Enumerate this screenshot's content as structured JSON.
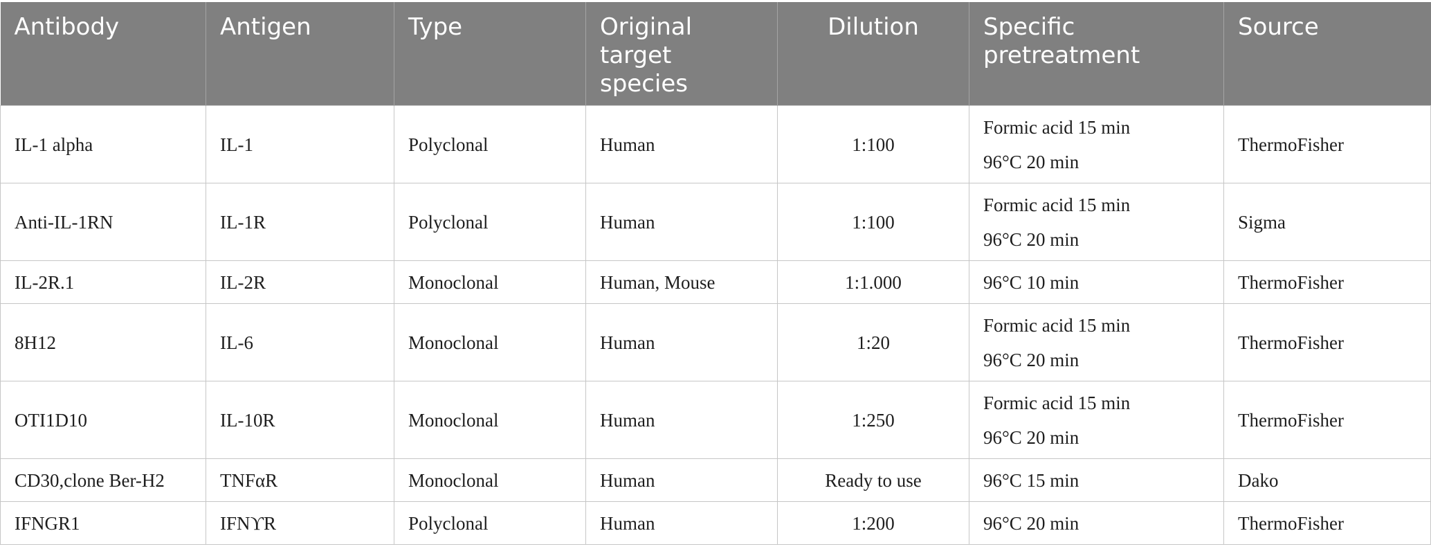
{
  "table": {
    "headers": [
      "Antibody",
      "Antigen",
      "Type",
      "Original target species",
      "Dilution",
      "Specific pretreatment",
      "Source"
    ],
    "rows": [
      {
        "antibody": "IL-1 alpha",
        "antigen": "IL-1",
        "type": "Polyclonal",
        "species": "Human",
        "dilution": "1:100",
        "pretreatment": [
          "Formic acid 15 min",
          "96°C 20 min"
        ],
        "source": "ThermoFisher"
      },
      {
        "antibody": "Anti-IL-1RN",
        "antigen": "IL-1R",
        "type": "Polyclonal",
        "species": "Human",
        "dilution": "1:100",
        "pretreatment": [
          "Formic acid 15 min",
          "96°C 20 min"
        ],
        "source": "Sigma"
      },
      {
        "antibody": "IL-2R.1",
        "antigen": "IL-2R",
        "type": "Monoclonal",
        "species": "Human, Mouse",
        "dilution": "1:1.000",
        "pretreatment": [
          "96°C 10 min"
        ],
        "source": "ThermoFisher"
      },
      {
        "antibody": "8H12",
        "antigen": "IL-6",
        "type": "Monoclonal",
        "species": "Human",
        "dilution": "1:20",
        "pretreatment": [
          "Formic acid 15 min",
          "96°C 20 min"
        ],
        "source": "ThermoFisher"
      },
      {
        "antibody": "OTI1D10",
        "antigen": "IL-10R",
        "type": "Monoclonal",
        "species": "Human",
        "dilution": "1:250",
        "pretreatment": [
          "Formic acid 15 min",
          "96°C 20 min"
        ],
        "source": "ThermoFisher"
      },
      {
        "antibody": "CD30,clone Ber-H2",
        "antigen": "TNFαR",
        "type": "Monoclonal",
        "species": "Human",
        "dilution": "Ready to use",
        "pretreatment": [
          "96°C 15 min"
        ],
        "source": "Dako"
      },
      {
        "antibody": "IFNGR1",
        "antigen": "IFNϒR",
        "type": "Polyclonal",
        "species": "Human",
        "dilution": "1:200",
        "pretreatment": [
          "96°C 20 min"
        ],
        "source": "ThermoFisher"
      }
    ]
  }
}
